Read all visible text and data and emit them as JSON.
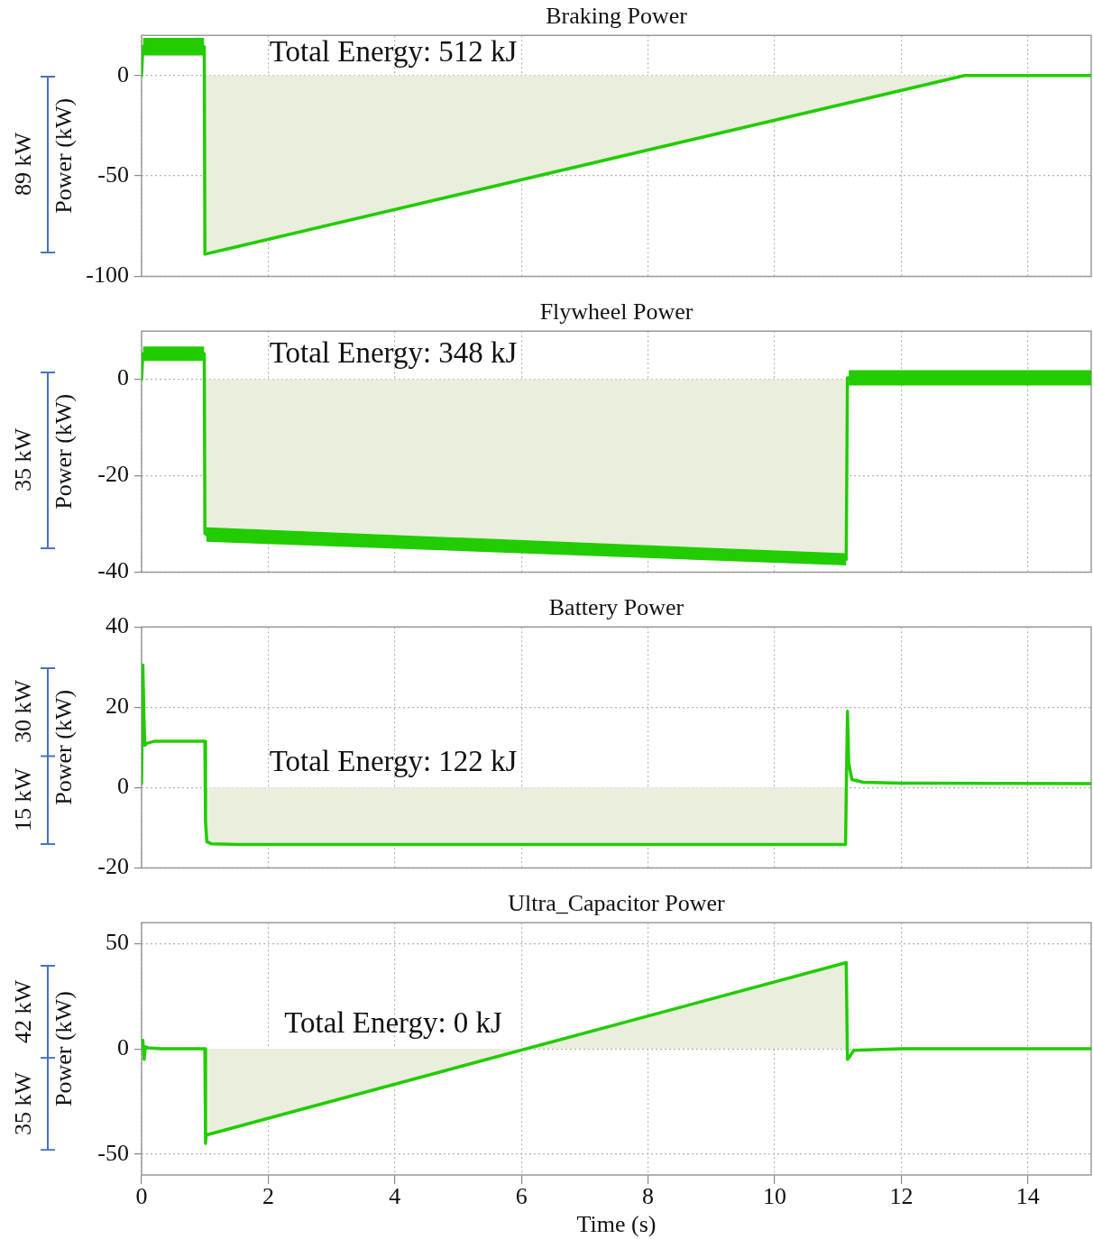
{
  "chart_data": [
    {
      "type": "line",
      "title": "Braking Power",
      "ylabel": "Power (kW)",
      "xlim": [
        0,
        15
      ],
      "xticks": [
        0,
        2,
        4,
        6,
        8,
        10,
        12,
        14
      ],
      "ylim": [
        -100,
        20
      ],
      "yticks": [
        -100,
        -50,
        0
      ],
      "grid": true,
      "marker": "none",
      "tick_labels": "y",
      "annotations": [
        "89 kW",
        "Total Energy: 512 kJ"
      ],
      "series": [
        {
          "type": "area",
          "color": "#e9eedd",
          "x": [
            1,
            13
          ],
          "values": [
            -89,
            0
          ]
        },
        {
          "color": "#22cc00",
          "x": [
            0,
            0.02,
            0.99,
            1,
            13,
            15
          ],
          "values": [
            0,
            14.4,
            14.4,
            -89,
            0,
            0
          ],
          "lower": [
            null,
            10,
            10,
            null,
            null,
            null
          ],
          "upper": [
            null,
            18.7,
            18.7,
            null,
            null,
            null
          ]
        }
      ]
    },
    {
      "type": "line",
      "title": "Flywheel Power",
      "ylabel": "Power (kW)",
      "xlim": [
        0,
        15
      ],
      "xticks": [
        0,
        2,
        4,
        6,
        8,
        10,
        12,
        14
      ],
      "ylim": [
        -40,
        10
      ],
      "yticks": [
        -40,
        -20,
        0
      ],
      "grid": true,
      "marker": "none",
      "tick_labels": "y",
      "annotations": [
        "35 kW",
        "Total Energy: 348 kJ"
      ],
      "series": [
        {
          "type": "area",
          "color": "#e9eedd",
          "x": [
            1,
            11.13
          ],
          "values": [
            -30.7,
            -36.1
          ]
        },
        {
          "color": "#22cc00",
          "x": [
            0,
            0.02,
            0.99,
            1,
            1.02,
            11.13,
            11.15,
            11.17,
            15
          ],
          "values": [
            0,
            5.3,
            5.3,
            -32,
            -32.2,
            -37.4,
            0.3,
            0.3,
            0.3
          ],
          "lower": [
            null,
            3.8,
            3.8,
            null,
            -33.7,
            -38.6,
            null,
            -1.3,
            -1.3
          ],
          "upper": [
            null,
            6.8,
            6.8,
            null,
            -30.7,
            -36.1,
            null,
            1.9,
            1.9
          ]
        }
      ]
    },
    {
      "type": "line",
      "title": "Battery Power",
      "ylabel": "Power (kW)",
      "xlim": [
        0,
        15
      ],
      "xticks": [
        0,
        2,
        4,
        6,
        8,
        10,
        12,
        14
      ],
      "ylim": [
        -20,
        40
      ],
      "yticks": [
        -20,
        0,
        20,
        40
      ],
      "grid": true,
      "marker": "none",
      "tick_labels": "y",
      "annotations": [
        "30 kW",
        "15 kW",
        "Total Energy: 122 kJ"
      ],
      "series": [
        {
          "type": "area",
          "color": "#e9eedd",
          "x": [
            1.02,
            11.12
          ],
          "values": [
            -14,
            -14.2
          ]
        },
        {
          "color": "#22cc00",
          "x": [
            0,
            0.02,
            0.04,
            0.05,
            0.08,
            0.2,
            1,
            1.01,
            1.03,
            1.1,
            1.5,
            11.12,
            11.13,
            11.15,
            11.17,
            11.22,
            11.4,
            12,
            15
          ],
          "values": [
            1,
            30.5,
            16,
            10.5,
            11,
            11.5,
            11.5,
            -8.5,
            -13.5,
            -14,
            -14.2,
            -14.2,
            -2.5,
            19,
            6,
            2,
            1.3,
            1.1,
            1
          ]
        }
      ]
    },
    {
      "type": "line",
      "title": "Ultra_Capacitor Power",
      "xlabel": "Time (s)",
      "ylabel": "Power (kW)",
      "xlim": [
        0,
        15
      ],
      "xticks": [
        0,
        2,
        4,
        6,
        8,
        10,
        12,
        14
      ],
      "ylim": [
        -60,
        60
      ],
      "yticks": [
        -50,
        0,
        50
      ],
      "grid": true,
      "marker": "none",
      "annotations": [
        "42 kW",
        "35 kW",
        "Total Energy: 0 kJ"
      ],
      "series": [
        {
          "type": "area",
          "color": "#e9eedd",
          "x": [
            1.02,
            11.13
          ],
          "values": [
            -41,
            41
          ]
        },
        {
          "color": "#22cc00",
          "x": [
            0,
            0.02,
            0.04,
            0.06,
            0.1,
            0.3,
            1,
            1.01,
            1.02,
            11.13,
            11.15,
            11.18,
            11.25,
            12,
            15
          ],
          "values": [
            0,
            4,
            -5,
            1,
            0.5,
            0,
            0,
            -45,
            -41,
            41,
            -5,
            -4,
            -0.7,
            0,
            0
          ]
        }
      ]
    }
  ]
}
